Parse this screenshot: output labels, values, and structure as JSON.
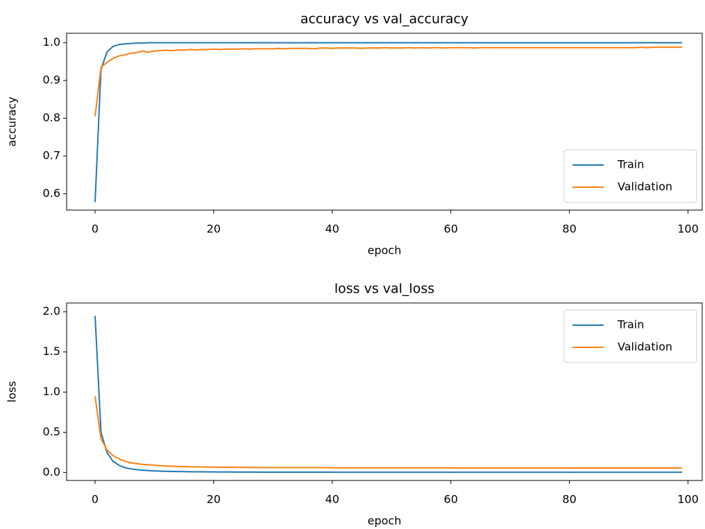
{
  "chart_data": [
    {
      "type": "line",
      "title": "accuracy vs val_accuracy",
      "x_label": "epoch",
      "y_label": "accuracy",
      "x": [
        0,
        1,
        2,
        3,
        4,
        5,
        6,
        7,
        8,
        9,
        10,
        11,
        12,
        13,
        14,
        15,
        16,
        17,
        18,
        19,
        20,
        21,
        22,
        23,
        24,
        25,
        26,
        27,
        28,
        29,
        30,
        31,
        32,
        33,
        34,
        35,
        36,
        37,
        38,
        39,
        40,
        41,
        42,
        43,
        44,
        45,
        46,
        47,
        48,
        49,
        50,
        51,
        52,
        53,
        54,
        55,
        56,
        57,
        58,
        59,
        60,
        61,
        62,
        63,
        64,
        65,
        66,
        67,
        68,
        69,
        70,
        71,
        72,
        73,
        74,
        75,
        76,
        77,
        78,
        79,
        80,
        81,
        82,
        83,
        84,
        85,
        86,
        87,
        88,
        89,
        90,
        91,
        92,
        93,
        94,
        95,
        96,
        97,
        98,
        99
      ],
      "series": [
        {
          "name": "Train",
          "color": "#1f77b4",
          "values": [
            0.578,
            0.93,
            0.975,
            0.99,
            0.995,
            0.997,
            0.998,
            0.999,
            0.999,
            1,
            1,
            1,
            1,
            1,
            1,
            1,
            1,
            1,
            1,
            1,
            1,
            1,
            1,
            1,
            1,
            1,
            1,
            1,
            1,
            1,
            1,
            1,
            1,
            1,
            1,
            1,
            1,
            1,
            1,
            1,
            1,
            1,
            1,
            1,
            1,
            1,
            1,
            1,
            1,
            1,
            1,
            1,
            1,
            1,
            1,
            1,
            1,
            1,
            1,
            1,
            1,
            1,
            1,
            1,
            1,
            1,
            1,
            1,
            1,
            1,
            1,
            1,
            1,
            1,
            1,
            1,
            1,
            1,
            1,
            1,
            1,
            1,
            1,
            1,
            1,
            1,
            1,
            1,
            1,
            1,
            1,
            1,
            1,
            1,
            1,
            1,
            1,
            1,
            1,
            1
          ]
        },
        {
          "name": "Validation",
          "color": "#ff7f0e",
          "values": [
            0.805,
            0.935,
            0.948,
            0.958,
            0.965,
            0.968,
            0.972,
            0.974,
            0.978,
            0.975,
            0.978,
            0.979,
            0.98,
            0.979,
            0.981,
            0.98,
            0.982,
            0.981,
            0.982,
            0.982,
            0.983,
            0.982,
            0.983,
            0.983,
            0.983,
            0.984,
            0.983,
            0.984,
            0.984,
            0.984,
            0.984,
            0.985,
            0.984,
            0.985,
            0.985,
            0.985,
            0.985,
            0.984,
            0.986,
            0.986,
            0.985,
            0.986,
            0.986,
            0.986,
            0.986,
            0.985,
            0.986,
            0.986,
            0.986,
            0.987,
            0.986,
            0.986,
            0.986,
            0.987,
            0.986,
            0.987,
            0.986,
            0.987,
            0.987,
            0.986,
            0.987,
            0.987,
            0.987,
            0.987,
            0.986,
            0.987,
            0.987,
            0.987,
            0.987,
            0.987,
            0.987,
            0.987,
            0.987,
            0.987,
            0.987,
            0.987,
            0.987,
            0.987,
            0.987,
            0.987,
            0.987,
            0.987,
            0.987,
            0.987,
            0.987,
            0.987,
            0.987,
            0.987,
            0.987,
            0.987,
            0.987,
            0.987,
            0.988,
            0.987,
            0.988,
            0.988,
            0.988,
            0.988,
            0.988,
            0.988
          ]
        }
      ],
      "xlim": [
        -4.8,
        102.4
      ],
      "xticks": [
        0,
        20,
        40,
        60,
        80,
        100
      ],
      "ylim": [
        0.557,
        1.025
      ],
      "yticks": [
        0.6,
        0.7,
        0.8,
        0.9,
        {
          "value": 1,
          "label": "1.0"
        }
      ],
      "legend": "lower right"
    },
    {
      "type": "line",
      "title": "loss vs val_loss",
      "x_label": "epoch",
      "y_label": "loss",
      "x": [
        0,
        1,
        2,
        3,
        4,
        5,
        6,
        7,
        8,
        9,
        10,
        11,
        12,
        13,
        14,
        15,
        16,
        17,
        18,
        19,
        20,
        21,
        22,
        23,
        24,
        25,
        26,
        27,
        28,
        29,
        30,
        31,
        32,
        33,
        34,
        35,
        36,
        37,
        38,
        39,
        40,
        41,
        42,
        43,
        44,
        45,
        46,
        47,
        48,
        49,
        50,
        51,
        52,
        53,
        54,
        55,
        56,
        57,
        58,
        59,
        60,
        61,
        62,
        63,
        64,
        65,
        66,
        67,
        68,
        69,
        70,
        71,
        72,
        73,
        74,
        75,
        76,
        77,
        78,
        79,
        80,
        81,
        82,
        83,
        84,
        85,
        86,
        87,
        88,
        89,
        90,
        91,
        92,
        93,
        94,
        95,
        96,
        97,
        98,
        99
      ],
      "series": [
        {
          "name": "Train",
          "color": "#1f77b4",
          "values": [
            1.95,
            0.5,
            0.25,
            0.14,
            0.09,
            0.06,
            0.045,
            0.035,
            0.028,
            0.023,
            0.019,
            0.016,
            0.014,
            0.012,
            0.011,
            0.01,
            0.009,
            0.008,
            0.008,
            0.007,
            0.007,
            0.006,
            0.006,
            0.006,
            0.005,
            0.005,
            0.005,
            0.005,
            0.004,
            0.004,
            0.004,
            0.004,
            0.004,
            0.004,
            0.004,
            0.004,
            0.004,
            0.004,
            0.004,
            0.004,
            0.003,
            0.003,
            0.003,
            0.003,
            0.003,
            0.003,
            0.003,
            0.003,
            0.003,
            0.003,
            0.003,
            0.003,
            0.003,
            0.003,
            0.003,
            0.003,
            0.003,
            0.003,
            0.003,
            0.003,
            0.002,
            0.002,
            0.002,
            0.002,
            0.002,
            0.002,
            0.002,
            0.002,
            0.002,
            0.002,
            0.002,
            0.002,
            0.002,
            0.002,
            0.002,
            0.002,
            0.002,
            0.002,
            0.002,
            0.002,
            0.002,
            0.002,
            0.002,
            0.002,
            0.002,
            0.002,
            0.002,
            0.002,
            0.002,
            0.002,
            0.002,
            0.002,
            0.002,
            0.002,
            0.002,
            0.002,
            0.002,
            0.002,
            0.002,
            0.002
          ]
        },
        {
          "name": "Validation",
          "color": "#ff7f0e",
          "values": [
            0.95,
            0.42,
            0.28,
            0.21,
            0.17,
            0.14,
            0.12,
            0.11,
            0.1,
            0.095,
            0.09,
            0.085,
            0.08,
            0.078,
            0.075,
            0.073,
            0.071,
            0.07,
            0.068,
            0.067,
            0.066,
            0.065,
            0.064,
            0.064,
            0.063,
            0.062,
            0.062,
            0.061,
            0.061,
            0.06,
            0.06,
            0.06,
            0.06,
            0.06,
            0.06,
            0.06,
            0.06,
            0.06,
            0.06,
            0.06,
            0.058,
            0.058,
            0.058,
            0.058,
            0.058,
            0.058,
            0.058,
            0.058,
            0.058,
            0.058,
            0.058,
            0.058,
            0.058,
            0.058,
            0.058,
            0.058,
            0.058,
            0.058,
            0.058,
            0.058,
            0.056,
            0.056,
            0.056,
            0.056,
            0.056,
            0.056,
            0.056,
            0.056,
            0.056,
            0.056,
            0.056,
            0.056,
            0.056,
            0.056,
            0.056,
            0.056,
            0.056,
            0.056,
            0.056,
            0.056,
            0.055,
            0.055,
            0.055,
            0.055,
            0.055,
            0.055,
            0.055,
            0.055,
            0.055,
            0.055,
            0.055,
            0.055,
            0.055,
            0.055,
            0.055,
            0.055,
            0.055,
            0.055,
            0.055,
            0.055
          ]
        }
      ],
      "xlim": [
        -4.8,
        102.4
      ],
      "xticks": [
        0,
        20,
        40,
        60,
        80,
        100
      ],
      "ylim": [
        -0.1,
        2.11
      ],
      "yticks": [
        {
          "value": 0,
          "label": "0.0"
        },
        0.5,
        {
          "value": 1,
          "label": "1.0"
        },
        1.5,
        {
          "value": 2,
          "label": "2.0"
        }
      ],
      "legend": "upper right"
    }
  ]
}
